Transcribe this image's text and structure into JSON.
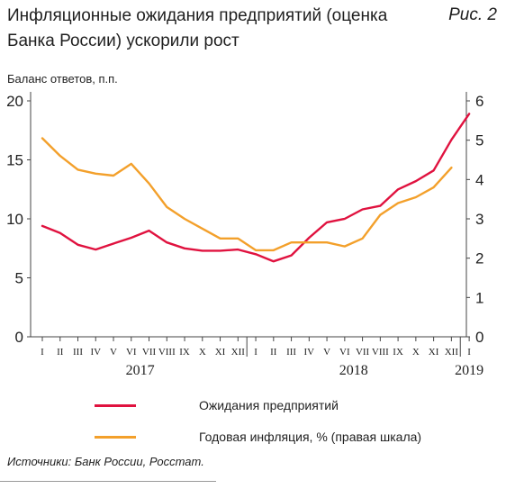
{
  "header": {
    "title": "Инфляционные ожидания предприятий (оценка Банка России) ускорили рост",
    "figure_label": "Рис. 2"
  },
  "chart_data": {
    "type": "line",
    "ylabel_unit": "Баланс ответов, п.п.",
    "y_left": {
      "range": [
        0,
        20
      ],
      "ticks": [
        "0",
        "5",
        "10",
        "15",
        "20"
      ]
    },
    "y_right": {
      "range": [
        0,
        6
      ],
      "ticks": [
        "0",
        "1",
        "2",
        "3",
        "4",
        "5",
        "6"
      ]
    },
    "x_months": [
      "I",
      "II",
      "III",
      "IV",
      "V",
      "VI",
      "VII",
      "VIII",
      "IX",
      "X",
      "XI",
      "XII",
      "I",
      "II",
      "III",
      "IV",
      "V",
      "VI",
      "VII",
      "VIII",
      "IX",
      "X",
      "XI",
      "XII",
      "I"
    ],
    "x_years": [
      {
        "label": "2017",
        "month_index": 5.5
      },
      {
        "label": "2018",
        "month_index": 17.5
      },
      {
        "label": "2019",
        "month_index": 24
      }
    ],
    "series": [
      {
        "name": "Ожидания предприятий",
        "color": "#e0123f",
        "axis": "left",
        "x": [
          0,
          1,
          2,
          3,
          4,
          5,
          6,
          7,
          8,
          9,
          10,
          11,
          12,
          13,
          14,
          15,
          16,
          17,
          18,
          19,
          20,
          21,
          22,
          23,
          24
        ],
        "values": [
          9.4,
          8.8,
          7.8,
          7.4,
          7.9,
          8.4,
          9.0,
          8.0,
          7.5,
          7.3,
          7.3,
          7.4,
          7.0,
          6.4,
          6.9,
          8.4,
          9.7,
          10.0,
          10.8,
          11.1,
          12.5,
          13.2,
          14.1,
          16.7,
          18.9
        ]
      },
      {
        "name": "Годовая инфляция, % (правая шкала)",
        "color": "#f3a02b",
        "axis": "right",
        "x": [
          0,
          1,
          2,
          3,
          4,
          5,
          6,
          7,
          8,
          9,
          10,
          11,
          12,
          13,
          14,
          15,
          16,
          17,
          18,
          19,
          20,
          21,
          22,
          23
        ],
        "values": [
          5.05,
          4.6,
          4.25,
          4.15,
          4.1,
          4.4,
          3.9,
          3.3,
          3.0,
          2.75,
          2.5,
          2.5,
          2.2,
          2.2,
          2.4,
          2.4,
          2.4,
          2.3,
          2.5,
          3.1,
          3.4,
          3.55,
          3.8,
          4.3
        ]
      }
    ]
  },
  "legend": {
    "items": [
      {
        "label": "Ожидания предприятий",
        "color": "#e0123f"
      },
      {
        "label": "Годовая инфляция, % (правая шкала)",
        "color": "#f3a02b"
      }
    ]
  },
  "footer": {
    "source": "Источники: Банк России, Росстат."
  }
}
